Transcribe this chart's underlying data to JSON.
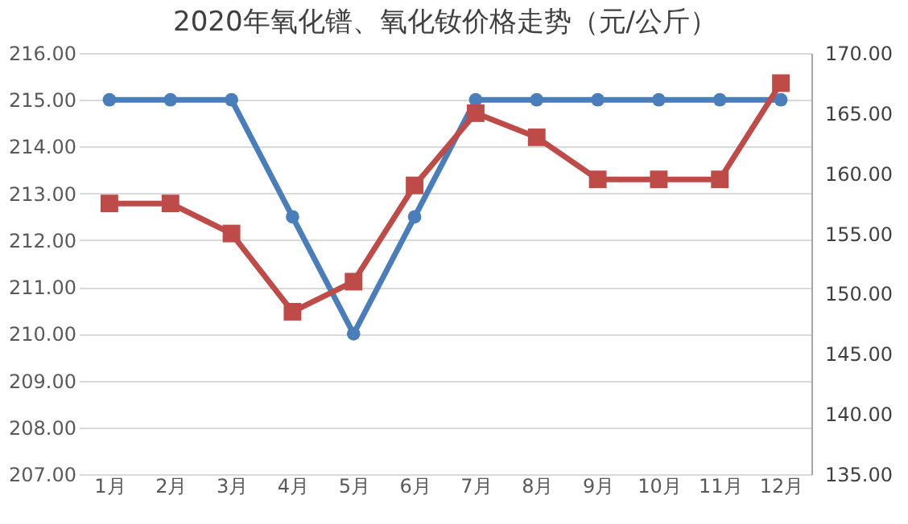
{
  "chart_data": {
    "type": "line",
    "title": "2020年氧化镨、氧化钕价格走势（元/公斤）",
    "categories": [
      "1月",
      "2月",
      "3月",
      "4月",
      "5月",
      "6月",
      "7月",
      "8月",
      "9月",
      "10月",
      "11月",
      "12月"
    ],
    "series": [
      {
        "color": "#4a7ebb",
        "marker": "circle",
        "values": [
          215,
          215,
          215,
          212.5,
          210,
          212.5,
          215,
          215,
          215,
          215,
          215,
          215
        ]
      },
      {
        "color": "#be4b48",
        "marker": "square",
        "axis": "y2",
        "values": [
          157.5,
          157.5,
          155,
          148.5,
          151,
          159,
          165,
          163,
          159.5,
          159.5,
          159.5,
          167.5
        ]
      }
    ],
    "ylim": [
      207,
      216
    ],
    "yticks": [
      {
        "value": 207,
        "label": "207.00"
      },
      {
        "value": 208,
        "label": "208.00"
      },
      {
        "value": 209,
        "label": "209.00"
      },
      {
        "value": 210,
        "label": "210.00"
      },
      {
        "value": 211,
        "label": "211.00"
      },
      {
        "value": 212,
        "label": "212.00"
      },
      {
        "value": 213,
        "label": "213.00"
      },
      {
        "value": 214,
        "label": "214.00"
      },
      {
        "value": 215,
        "label": "215.00"
      },
      {
        "value": 216,
        "label": "216.00"
      }
    ],
    "y2lim": [
      135,
      170
    ],
    "y2ticks": [
      {
        "value": 135,
        "label": "135.00"
      },
      {
        "value": 140,
        "label": "140.00"
      },
      {
        "value": 145,
        "label": "145.00"
      },
      {
        "value": 150,
        "label": "150.00"
      },
      {
        "value": 155,
        "label": "155.00"
      },
      {
        "value": 160,
        "label": "160.00"
      },
      {
        "value": 165,
        "label": "165.00"
      },
      {
        "value": 170,
        "label": "170.00"
      }
    ],
    "grid": "y",
    "line_style": "solid"
  }
}
